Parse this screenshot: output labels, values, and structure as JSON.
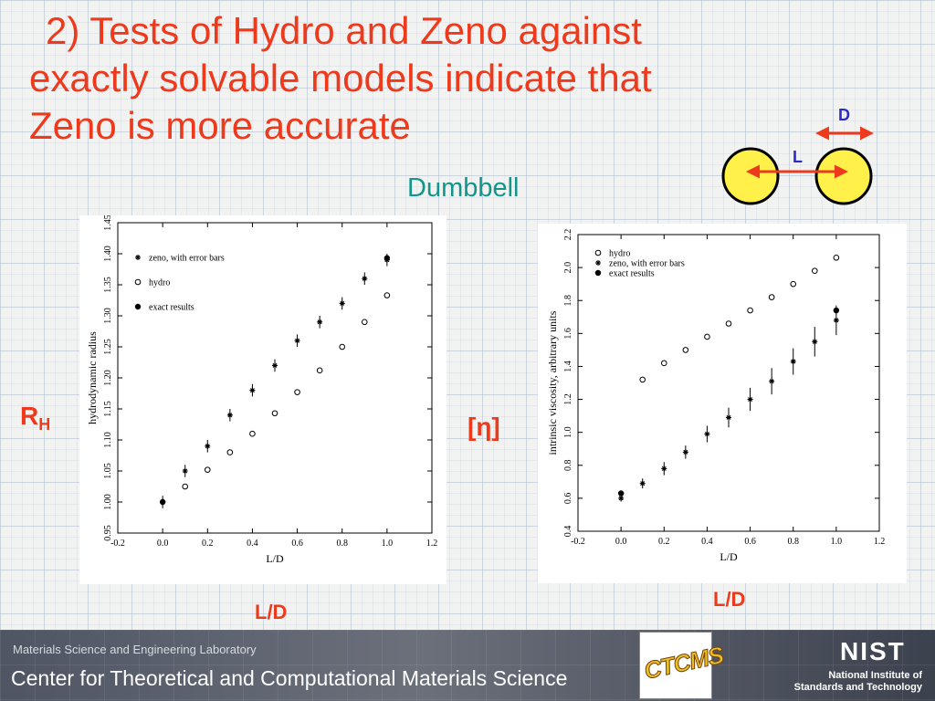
{
  "slide": {
    "title_line1": "2) Tests of Hydro and Zeno against",
    "title_line2": "exactly solvable models indicate that",
    "title_line3": "Zeno is more accurate",
    "subtitle": "Dumbbell",
    "diagram": {
      "label_d": "D",
      "label_l": "L"
    },
    "left_quantity": "R",
    "left_quantity_sub": "H",
    "right_quantity": "[η]",
    "left_xlabel": "L/D",
    "right_xlabel": "L/D"
  },
  "footer": {
    "lab": "Materials Science and Engineering Laboratory",
    "center": "Center for Theoretical and Computational Materials Science",
    "ctcms_logo": "CTCMS",
    "nist_logo": "NIST",
    "nist_line1": "National Institute of",
    "nist_line2": "Standards and Technology"
  },
  "colors": {
    "title": "#ee3a1c",
    "subtitle": "#12958a",
    "sphere": "#fff04a"
  },
  "chart_data": [
    {
      "type": "scatter",
      "xlabel": "L/D",
      "ylabel": "hydrodynamic radius",
      "xlim": [
        -0.2,
        1.2
      ],
      "ylim": [
        0.95,
        1.45
      ],
      "xticks": [
        "-0.2",
        "0.0",
        "0.2",
        "0.4",
        "0.6",
        "0.8",
        "1.0",
        "1.2"
      ],
      "yticks": [
        "0.95",
        "1.00",
        "1.05",
        "1.10",
        "1.15",
        "1.20",
        "1.25",
        "1.30",
        "1.35",
        "1.40",
        "1.45"
      ],
      "legend_position": "top-left",
      "series": [
        {
          "name": "zeno, with error bars",
          "marker": "star",
          "x": [
            0.0,
            0.1,
            0.2,
            0.3,
            0.4,
            0.5,
            0.6,
            0.7,
            0.8,
            0.9,
            1.0
          ],
          "y": [
            1.0,
            1.05,
            1.09,
            1.14,
            1.18,
            1.22,
            1.26,
            1.29,
            1.32,
            1.36,
            1.39
          ],
          "err": [
            0.01,
            0.01,
            0.01,
            0.01,
            0.01,
            0.01,
            0.01,
            0.01,
            0.01,
            0.01,
            0.01
          ]
        },
        {
          "name": "hydro",
          "marker": "circle-open",
          "x": [
            0.1,
            0.2,
            0.3,
            0.4,
            0.5,
            0.6,
            0.7,
            0.8,
            0.9,
            1.0
          ],
          "y": [
            1.025,
            1.052,
            1.08,
            1.11,
            1.143,
            1.177,
            1.212,
            1.25,
            1.29,
            1.333
          ]
        },
        {
          "name": "exact results",
          "marker": "circle-filled",
          "x": [
            0.0,
            1.0
          ],
          "y": [
            1.0,
            1.393
          ]
        }
      ]
    },
    {
      "type": "scatter",
      "xlabel": "L/D",
      "ylabel": "intrinsic viscosity, arbitrary units",
      "xlim": [
        -0.2,
        1.2
      ],
      "ylim": [
        0.4,
        2.2
      ],
      "xticks": [
        "-0.2",
        "0.0",
        "0.2",
        "0.4",
        "0.6",
        "0.8",
        "1.0",
        "1.2"
      ],
      "yticks": [
        "0.4",
        "0.6",
        "0.8",
        "1.0",
        "1.2",
        "1.4",
        "1.6",
        "1.8",
        "2.0",
        "2.2"
      ],
      "legend_position": "top-left",
      "series": [
        {
          "name": "hydro",
          "marker": "circle-open",
          "x": [
            0.1,
            0.2,
            0.3,
            0.4,
            0.5,
            0.6,
            0.7,
            0.8,
            0.9,
            1.0
          ],
          "y": [
            1.32,
            1.42,
            1.5,
            1.58,
            1.66,
            1.74,
            1.82,
            1.9,
            1.98,
            2.06
          ]
        },
        {
          "name": "zeno, with error bars",
          "marker": "star",
          "x": [
            0.0,
            0.1,
            0.2,
            0.3,
            0.4,
            0.5,
            0.6,
            0.7,
            0.8,
            0.9,
            1.0
          ],
          "y": [
            0.6,
            0.69,
            0.78,
            0.88,
            0.99,
            1.09,
            1.2,
            1.31,
            1.43,
            1.55,
            1.68
          ],
          "err": [
            0.02,
            0.03,
            0.04,
            0.04,
            0.05,
            0.06,
            0.07,
            0.08,
            0.08,
            0.09,
            0.09
          ]
        },
        {
          "name": "exact results",
          "marker": "circle-filled",
          "x": [
            0.0,
            1.0
          ],
          "y": [
            0.63,
            1.74
          ]
        }
      ]
    }
  ]
}
